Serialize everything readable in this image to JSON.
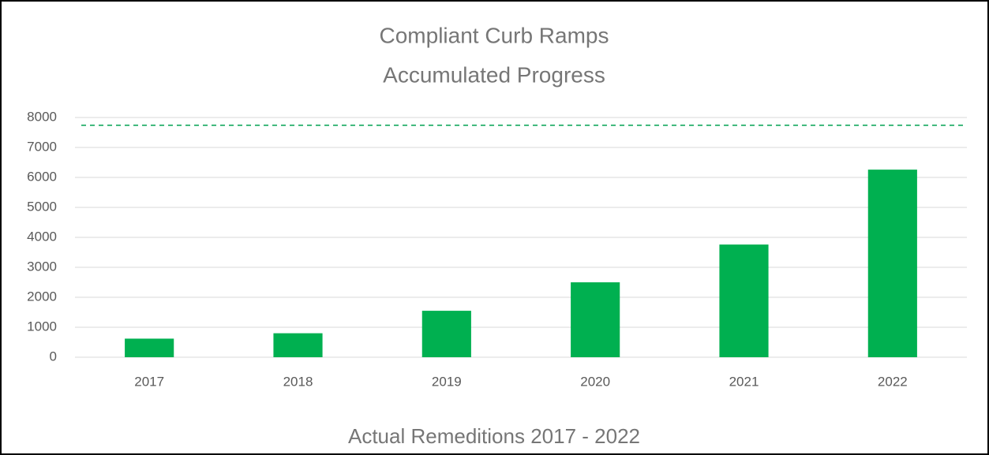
{
  "chart_data": {
    "type": "bar",
    "title": "Compliant Curb Ramps",
    "subtitle": "Accumulated Progress",
    "x_label": "Actual Remeditions 2017 - 2022",
    "categories": [
      "2017",
      "2018",
      "2019",
      "2020",
      "2021",
      "2022"
    ],
    "values": [
      620,
      800,
      1550,
      2500,
      3760,
      6260
    ],
    "color": "#00b050",
    "ylim": [
      0,
      8000
    ],
    "yticks": [
      0,
      1000,
      2000,
      3000,
      4000,
      5000,
      6000,
      7000,
      8000
    ],
    "grid": true,
    "reference_line": {
      "value": 7740,
      "color": "#00a050",
      "style": "dashed"
    }
  }
}
